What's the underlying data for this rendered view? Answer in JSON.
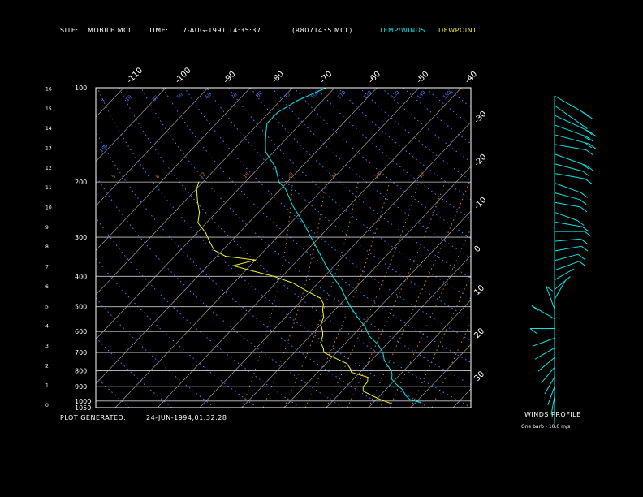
{
  "header": {
    "site_label": "SITE:",
    "site_value": "MOBILE MCL",
    "time_label": "TIME:",
    "time_value": "7-AUG-1991,14:35:37",
    "file_id": "(R8071435.MCL)",
    "legend_temp": "TEMP/WINDS",
    "legend_dew": "DEWPOINT"
  },
  "footer": {
    "generated_label": "PLOT GENERATED:",
    "generated_value": "24-JUN-1994,01:32:28",
    "winds_title": "WINDS PROFILE",
    "barb_note": "One barb - 10.0 m/s"
  },
  "colors": {
    "background": "#000000",
    "temp": "#00e5e5",
    "dewpoint": "#f0f030",
    "isotherm": "#9a9a9a",
    "dry_adiabat": "#4a78ff",
    "moist_adiabat": "#d87040",
    "text": "#ffffff"
  },
  "chart_data": {
    "type": "line",
    "left_axis_ticks": [
      "0",
      "1",
      "2",
      "3",
      "4",
      "5",
      "6",
      "7",
      "8",
      "9",
      "10",
      "11",
      "12",
      "13",
      "14",
      "15",
      "16"
    ],
    "pressure_levels": [
      {
        "label": "100",
        "p": 100
      },
      {
        "label": "200",
        "p": 200
      },
      {
        "label": "300",
        "p": 300
      },
      {
        "label": "400",
        "p": 400
      },
      {
        "label": "500",
        "p": 500
      },
      {
        "label": "600",
        "p": 600
      },
      {
        "label": "700",
        "p": 700
      },
      {
        "label": "800",
        "p": 800
      },
      {
        "label": "900",
        "p": 900
      },
      {
        "label": "1000",
        "p": 1000
      },
      {
        "label": "1050",
        "p": 1050
      }
    ],
    "temperature_labels_top": [
      "-110",
      "-100",
      "-90",
      "-80",
      "-70",
      "-60",
      "-50",
      "-40"
    ],
    "temperature_labels_right": [
      "-30",
      "-20",
      "-10",
      "0",
      "10",
      "20",
      "30"
    ],
    "dry_adiabat_labels": [
      "-5",
      "10",
      "35",
      "50",
      "60",
      "70",
      "80",
      "95",
      "100",
      "110",
      "120",
      "130",
      "140",
      "150",
      "160"
    ],
    "moist_adiabat_labels_top": [
      "5",
      "8",
      "12",
      "16",
      "20",
      "24",
      "28",
      "32"
    ],
    "series": [
      {
        "name": "TEMP/WINDS",
        "points": [
          [
            1010,
            31
          ],
          [
            990,
            28
          ],
          [
            960,
            26
          ],
          [
            920,
            24
          ],
          [
            880,
            21
          ],
          [
            850,
            19
          ],
          [
            820,
            18
          ],
          [
            800,
            17
          ],
          [
            770,
            15
          ],
          [
            740,
            13
          ],
          [
            700,
            11
          ],
          [
            660,
            8
          ],
          [
            620,
            4
          ],
          [
            580,
            1
          ],
          [
            540,
            -3
          ],
          [
            500,
            -7
          ],
          [
            470,
            -10
          ],
          [
            440,
            -13
          ],
          [
            400,
            -18
          ],
          [
            370,
            -22
          ],
          [
            340,
            -26
          ],
          [
            300,
            -32
          ],
          [
            270,
            -37
          ],
          [
            240,
            -43
          ],
          [
            210,
            -49
          ],
          [
            200,
            -52
          ],
          [
            180,
            -56
          ],
          [
            160,
            -62
          ],
          [
            150,
            -64
          ],
          [
            140,
            -66
          ],
          [
            130,
            -68
          ],
          [
            120,
            -68
          ],
          [
            110,
            -66
          ],
          [
            100,
            -62
          ]
        ]
      },
      {
        "name": "DEWPOINT",
        "points": [
          [
            1015,
            24
          ],
          [
            990,
            21
          ],
          [
            960,
            18
          ],
          [
            930,
            15
          ],
          [
            900,
            14
          ],
          [
            870,
            14
          ],
          [
            840,
            13
          ],
          [
            810,
            8
          ],
          [
            790,
            7
          ],
          [
            760,
            5
          ],
          [
            730,
            1
          ],
          [
            700,
            -3
          ],
          [
            680,
            -4
          ],
          [
            650,
            -6
          ],
          [
            620,
            -7
          ],
          [
            600,
            -8
          ],
          [
            570,
            -10
          ],
          [
            540,
            -11
          ],
          [
            510,
            -13
          ],
          [
            490,
            -14
          ],
          [
            470,
            -16
          ],
          [
            450,
            -20
          ],
          [
            420,
            -26
          ],
          [
            400,
            -32
          ],
          [
            385,
            -38
          ],
          [
            370,
            -44
          ],
          [
            355,
            -40
          ],
          [
            345,
            -48
          ],
          [
            330,
            -52
          ],
          [
            310,
            -55
          ],
          [
            290,
            -58
          ],
          [
            270,
            -62
          ],
          [
            250,
            -64
          ],
          [
            230,
            -67
          ],
          [
            210,
            -70
          ],
          [
            200,
            -71
          ]
        ]
      }
    ],
    "winds_profile": [
      {
        "h": 16,
        "dir": 240,
        "spd": 22
      },
      {
        "h": 15.5,
        "dir": 235,
        "spd": 18
      },
      {
        "h": 15,
        "dir": 245,
        "spd": 25
      },
      {
        "h": 14.5,
        "dir": 250,
        "spd": 20
      },
      {
        "h": 14,
        "dir": 255,
        "spd": 22
      },
      {
        "h": 13.5,
        "dir": 260,
        "spd": 18
      },
      {
        "h": 13,
        "dir": 250,
        "spd": 20
      },
      {
        "h": 12.5,
        "dir": 255,
        "spd": 15
      },
      {
        "h": 12,
        "dir": 260,
        "spd": 17
      },
      {
        "h": 11.5,
        "dir": 250,
        "spd": 14
      },
      {
        "h": 11,
        "dir": 255,
        "spd": 12
      },
      {
        "h": 10.5,
        "dir": 260,
        "spd": 12
      },
      {
        "h": 10,
        "dir": 250,
        "spd": 10
      },
      {
        "h": 9.5,
        "dir": 260,
        "spd": 14
      },
      {
        "h": 9,
        "dir": 270,
        "spd": 16
      },
      {
        "h": 8.5,
        "dir": 275,
        "spd": 12
      },
      {
        "h": 8,
        "dir": 280,
        "spd": 13
      },
      {
        "h": 7.5,
        "dir": 285,
        "spd": 10
      },
      {
        "h": 7,
        "dir": 290,
        "spd": 12
      },
      {
        "h": 6.5,
        "dir": 300,
        "spd": 8
      },
      {
        "h": 6,
        "dir": 310,
        "spd": 6
      },
      {
        "h": 5.5,
        "dir": 330,
        "spd": 8
      },
      {
        "h": 5,
        "dir": 20,
        "spd": 10
      },
      {
        "h": 4.5,
        "dir": 60,
        "spd": 12
      },
      {
        "h": 4,
        "dir": 90,
        "spd": 10
      },
      {
        "h": 3.5,
        "dir": 110,
        "spd": 9
      },
      {
        "h": 3,
        "dir": 120,
        "spd": 8
      },
      {
        "h": 2.5,
        "dir": 130,
        "spd": 7
      },
      {
        "h": 2,
        "dir": 140,
        "spd": 6
      },
      {
        "h": 1.5,
        "dir": 150,
        "spd": 5
      },
      {
        "h": 1,
        "dir": 160,
        "spd": 5
      },
      {
        "h": 0.5,
        "dir": 170,
        "spd": 4
      },
      {
        "h": 0,
        "dir": 180,
        "spd": 3
      }
    ]
  }
}
